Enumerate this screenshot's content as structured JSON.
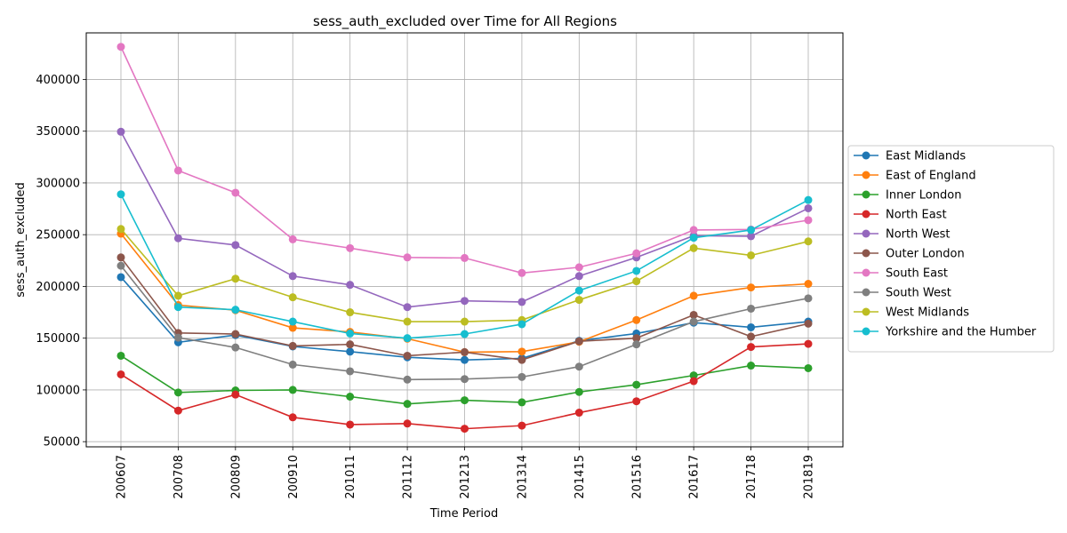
{
  "chart_data": {
    "type": "line",
    "title": "sess_auth_excluded over Time for All Regions",
    "xlabel": "Time Period",
    "ylabel": "sess_auth_excluded",
    "ylim": [
      45000,
      445000
    ],
    "yticks": [
      50000,
      100000,
      150000,
      200000,
      250000,
      300000,
      350000,
      400000
    ],
    "grid": true,
    "legend_position": "right",
    "categories": [
      "200607",
      "200708",
      "200809",
      "200910",
      "201011",
      "201112",
      "201213",
      "201314",
      "201415",
      "201516",
      "201617",
      "201718",
      "201819"
    ],
    "series": [
      {
        "name": "East Midlands",
        "color": "#1f77b4",
        "values": [
          209000,
          146000,
          153000,
          142000,
          137000,
          131500,
          129000,
          130500,
          147500,
          154500,
          165000,
          160500,
          166000
        ]
      },
      {
        "name": "East of England",
        "color": "#ff7f0e",
        "values": [
          251000,
          182000,
          177000,
          160000,
          156000,
          149500,
          136500,
          137000,
          146500,
          167500,
          191000,
          199000,
          202500
        ]
      },
      {
        "name": "Inner London",
        "color": "#2ca02c",
        "values": [
          133000,
          97500,
          99500,
          100000,
          93500,
          86500,
          90000,
          88000,
          98000,
          105000,
          114000,
          123500,
          121000
        ]
      },
      {
        "name": "North East",
        "color": "#d62728",
        "values": [
          115000,
          80000,
          95500,
          73500,
          66500,
          67500,
          62500,
          65500,
          78000,
          89000,
          108500,
          141500,
          144500
        ]
      },
      {
        "name": "North West",
        "color": "#9467bd",
        "values": [
          349500,
          246500,
          240000,
          210000,
          201500,
          180000,
          186000,
          185000,
          210000,
          228000,
          249000,
          248500,
          275500
        ]
      },
      {
        "name": "Outer London",
        "color": "#8c564b",
        "values": [
          228000,
          155000,
          154000,
          142500,
          144000,
          133000,
          136500,
          129000,
          147000,
          150000,
          172500,
          151500,
          164000
        ]
      },
      {
        "name": "South East",
        "color": "#e377c2",
        "values": [
          431500,
          312000,
          290500,
          245500,
          237000,
          228000,
          227500,
          213000,
          218500,
          232000,
          254500,
          255000,
          264000
        ]
      },
      {
        "name": "South West",
        "color": "#7f7f7f",
        "values": [
          220000,
          150500,
          141000,
          124500,
          118000,
          110000,
          110500,
          112500,
          122500,
          144000,
          166000,
          178500,
          188500
        ]
      },
      {
        "name": "West Midlands",
        "color": "#bcbd22",
        "values": [
          255500,
          191000,
          207500,
          189500,
          175000,
          166000,
          166000,
          167500,
          187000,
          205000,
          237000,
          230000,
          243500
        ]
      },
      {
        "name": "Yorkshire and the Humber",
        "color": "#17becf",
        "values": [
          289000,
          180000,
          177500,
          166000,
          154500,
          150000,
          154000,
          163500,
          196000,
          215000,
          247000,
          254500,
          283500
        ]
      }
    ]
  }
}
